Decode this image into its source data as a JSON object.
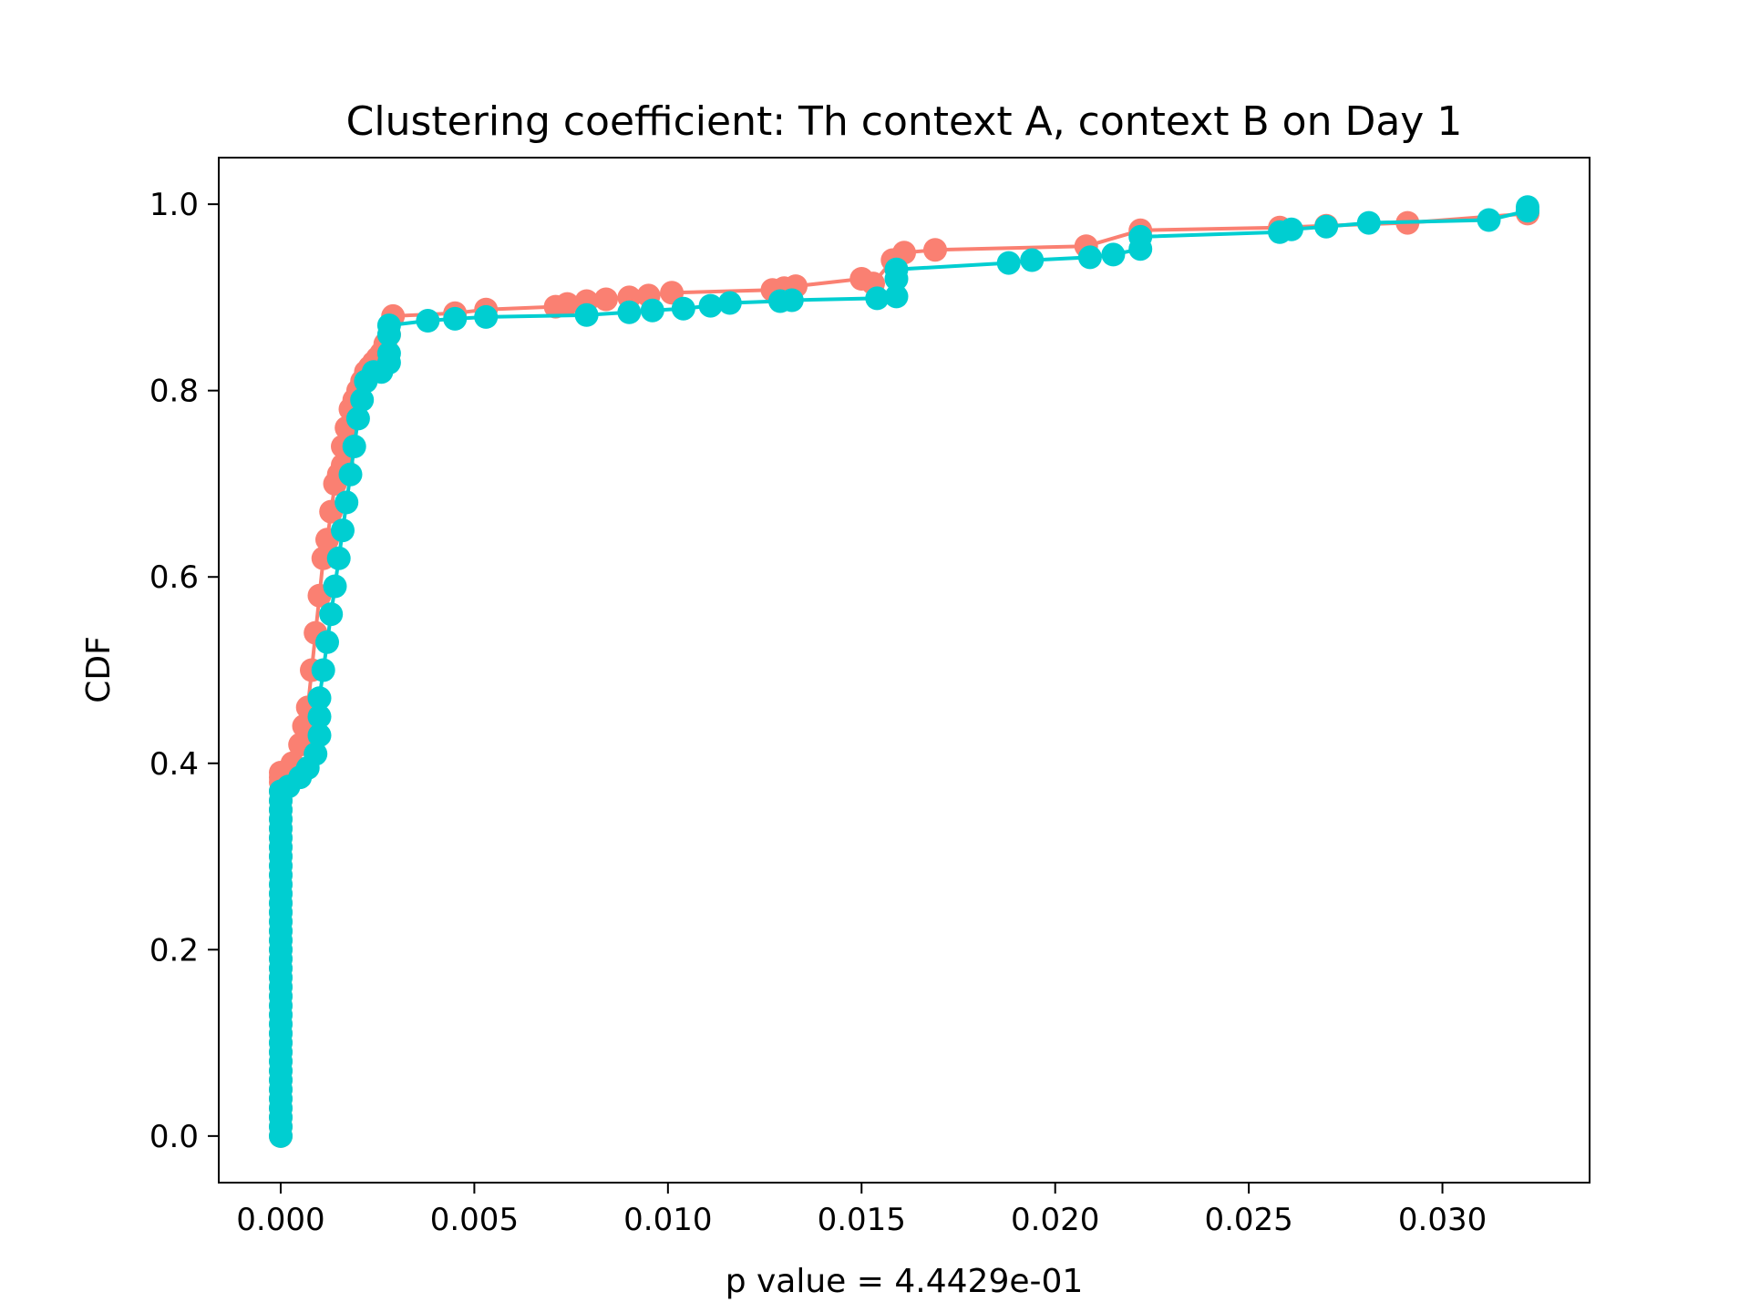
{
  "chart_data": {
    "type": "line",
    "title": "Clustering coefficient: Th context A, context B on Day 1",
    "xlabel": "p value = 4.4429e-01",
    "ylabel": "CDF",
    "xlim": [
      -0.0016,
      0.0338
    ],
    "ylim": [
      -0.05,
      1.05
    ],
    "xticks": [
      0.0,
      0.005,
      0.01,
      0.015,
      0.02,
      0.025,
      0.03
    ],
    "xtick_labels": [
      "0.000",
      "0.005",
      "0.010",
      "0.015",
      "0.020",
      "0.025",
      "0.030"
    ],
    "yticks": [
      0.0,
      0.2,
      0.4,
      0.6,
      0.8,
      1.0
    ],
    "ytick_labels": [
      "0.0",
      "0.2",
      "0.4",
      "0.6",
      "0.8",
      "1.0"
    ],
    "grid": false,
    "series": [
      {
        "color": "#fa8072",
        "x": [
          0.0,
          0.0,
          0.0,
          0.0,
          0.0,
          0.0,
          0.0,
          0.0,
          0.0,
          0.0,
          0.0,
          0.0,
          0.0,
          0.0,
          0.0,
          0.0,
          0.0,
          0.0,
          0.0,
          0.0,
          0.0,
          0.0,
          0.0,
          0.0,
          0.0,
          0.0,
          0.0,
          0.0,
          0.0,
          0.0,
          0.0,
          0.0,
          0.0,
          0.0,
          0.0,
          0.0,
          0.0,
          0.0,
          0.0,
          0.0,
          0.0,
          0.0003,
          0.0005,
          0.0006,
          0.0007,
          0.0008,
          0.0009,
          0.001,
          0.0011,
          0.0012,
          0.0013,
          0.0014,
          0.0015,
          0.0016,
          0.0016,
          0.0017,
          0.0018,
          0.0019,
          0.002,
          0.0021,
          0.0022,
          0.0023,
          0.0024,
          0.0025,
          0.0026,
          0.0027,
          0.0028,
          0.0029,
          0.0045,
          0.0053,
          0.0071,
          0.0074,
          0.0079,
          0.0084,
          0.009,
          0.0095,
          0.0101,
          0.0127,
          0.013,
          0.0133,
          0.015,
          0.0153,
          0.0158,
          0.0161,
          0.0169,
          0.0208,
          0.0222,
          0.0258,
          0.027,
          0.0291,
          0.0322
        ],
        "y": [
          0.0,
          0.01,
          0.02,
          0.03,
          0.04,
          0.05,
          0.06,
          0.07,
          0.08,
          0.09,
          0.1,
          0.11,
          0.12,
          0.13,
          0.14,
          0.15,
          0.16,
          0.17,
          0.18,
          0.19,
          0.2,
          0.21,
          0.22,
          0.23,
          0.24,
          0.25,
          0.26,
          0.27,
          0.28,
          0.29,
          0.3,
          0.31,
          0.32,
          0.33,
          0.34,
          0.35,
          0.36,
          0.37,
          0.38,
          0.385,
          0.39,
          0.4,
          0.42,
          0.44,
          0.46,
          0.5,
          0.54,
          0.58,
          0.62,
          0.64,
          0.67,
          0.7,
          0.71,
          0.72,
          0.74,
          0.76,
          0.78,
          0.79,
          0.8,
          0.81,
          0.82,
          0.825,
          0.83,
          0.835,
          0.84,
          0.85,
          0.86,
          0.88,
          0.883,
          0.887,
          0.89,
          0.893,
          0.896,
          0.898,
          0.9,
          0.902,
          0.905,
          0.908,
          0.91,
          0.912,
          0.92,
          0.915,
          0.94,
          0.948,
          0.951,
          0.955,
          0.972,
          0.975,
          0.977,
          0.98,
          0.99
        ]
      },
      {
        "color": "#00ced1",
        "x": [
          0.0,
          0.0,
          0.0,
          0.0,
          0.0,
          0.0,
          0.0,
          0.0,
          0.0,
          0.0,
          0.0,
          0.0,
          0.0,
          0.0,
          0.0,
          0.0,
          0.0,
          0.0,
          0.0,
          0.0,
          0.0,
          0.0,
          0.0,
          0.0,
          0.0,
          0.0,
          0.0,
          0.0,
          0.0,
          0.0,
          0.0,
          0.0,
          0.0,
          0.0,
          0.0,
          0.0,
          0.0,
          0.0,
          0.0002,
          0.0005,
          0.0007,
          0.0009,
          0.001,
          0.001,
          0.001,
          0.0011,
          0.0012,
          0.0013,
          0.0014,
          0.0015,
          0.0016,
          0.0017,
          0.0018,
          0.0019,
          0.002,
          0.0021,
          0.0022,
          0.0024,
          0.0026,
          0.0028,
          0.0028,
          0.0028,
          0.0028,
          0.0038,
          0.0045,
          0.0053,
          0.0079,
          0.009,
          0.0096,
          0.0104,
          0.0111,
          0.0116,
          0.0129,
          0.0132,
          0.0154,
          0.0159,
          0.0159,
          0.0159,
          0.0188,
          0.0194,
          0.0209,
          0.0215,
          0.0222,
          0.0222,
          0.0258,
          0.0261,
          0.027,
          0.0281,
          0.0312,
          0.0322,
          0.0322
        ],
        "y": [
          0.0,
          0.01,
          0.02,
          0.03,
          0.04,
          0.05,
          0.06,
          0.07,
          0.08,
          0.09,
          0.1,
          0.11,
          0.12,
          0.13,
          0.14,
          0.15,
          0.16,
          0.17,
          0.18,
          0.19,
          0.2,
          0.21,
          0.22,
          0.23,
          0.24,
          0.25,
          0.26,
          0.27,
          0.28,
          0.29,
          0.3,
          0.31,
          0.32,
          0.33,
          0.34,
          0.35,
          0.36,
          0.37,
          0.375,
          0.385,
          0.395,
          0.41,
          0.43,
          0.45,
          0.47,
          0.5,
          0.53,
          0.56,
          0.59,
          0.62,
          0.65,
          0.68,
          0.71,
          0.74,
          0.77,
          0.79,
          0.81,
          0.82,
          0.82,
          0.83,
          0.84,
          0.86,
          0.87,
          0.875,
          0.877,
          0.879,
          0.881,
          0.884,
          0.886,
          0.888,
          0.891,
          0.894,
          0.896,
          0.897,
          0.899,
          0.901,
          0.92,
          0.93,
          0.937,
          0.94,
          0.943,
          0.946,
          0.952,
          0.965,
          0.97,
          0.973,
          0.976,
          0.98,
          0.983,
          0.993,
          0.997
        ]
      }
    ]
  }
}
